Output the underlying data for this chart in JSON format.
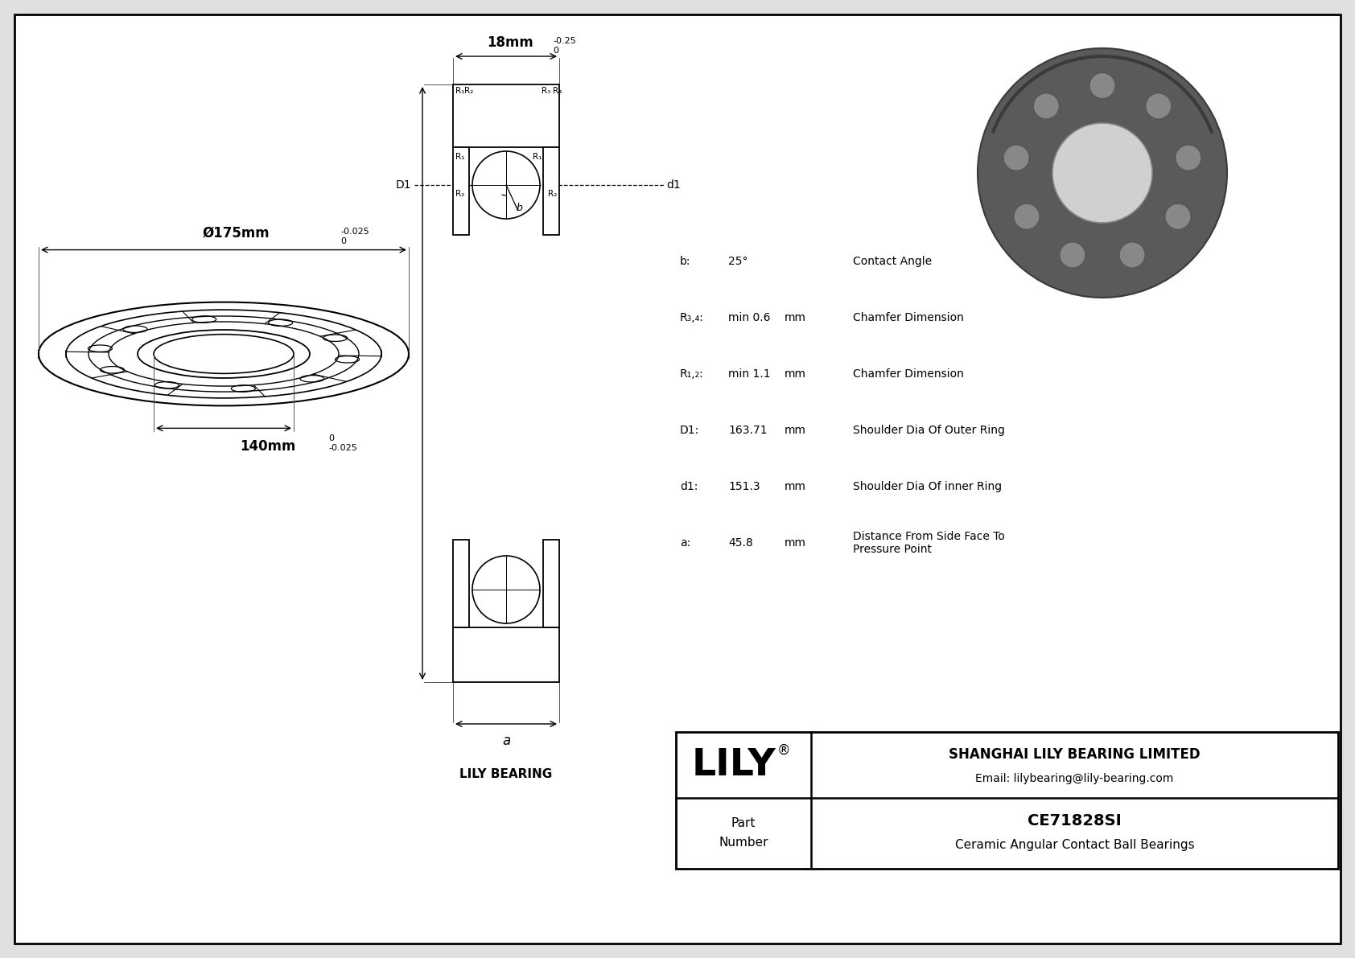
{
  "bg_color": "#e0e0e0",
  "line_color": "#000000",
  "outer_dim": "Ø175mm",
  "outer_tol_top": "0",
  "outer_tol_bot": "-0.025",
  "inner_dim": "140mm",
  "inner_tol_top": "0",
  "inner_tol_bot": "-0.025",
  "width_dim": "18mm",
  "width_tol_top": "0",
  "width_tol_bot": "-0.25",
  "lily_bearing_label": "LILY BEARING",
  "d1_label": "D1",
  "d1_small_label": "d1",
  "a_label": "a",
  "params": [
    {
      "sym": "b:",
      "val": "25°",
      "unit": "",
      "desc": "Contact Angle"
    },
    {
      "sym": "R₃,₄:",
      "val": "min 0.6",
      "unit": "mm",
      "desc": "Chamfer Dimension"
    },
    {
      "sym": "R₁,₂:",
      "val": "min 1.1",
      "unit": "mm",
      "desc": "Chamfer Dimension"
    },
    {
      "sym": "D1:",
      "val": "163.71",
      "unit": "mm",
      "desc": "Shoulder Dia Of Outer Ring"
    },
    {
      "sym": "d1:",
      "val": "151.3",
      "unit": "mm",
      "desc": "Shoulder Dia Of inner Ring"
    },
    {
      "sym": "a:",
      "val": "45.8",
      "unit": "mm",
      "desc": "Distance From Side Face To\nPressure Point"
    }
  ],
  "company": "SHANGHAI LILY BEARING LIMITED",
  "email": "Email: lilybearing@lily-bearing.com",
  "part_num": "CE71828SI",
  "part_desc": "Ceramic Angular Contact Ball Bearings"
}
